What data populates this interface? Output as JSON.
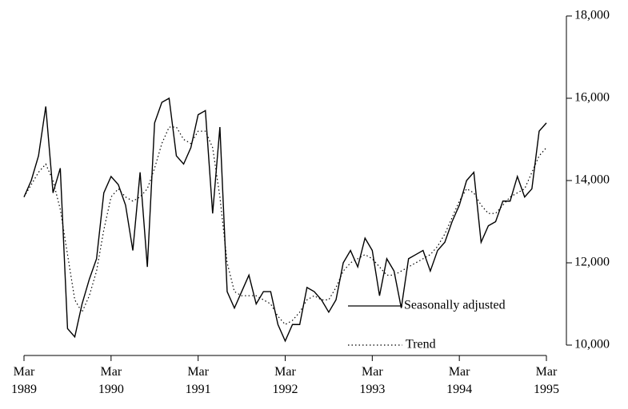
{
  "chart_data": {
    "type": "line",
    "categories": [
      "Mar 1989",
      null,
      null,
      null,
      null,
      null,
      null,
      null,
      null,
      null,
      null,
      null,
      "Mar 1990",
      null,
      null,
      null,
      null,
      null,
      null,
      null,
      null,
      null,
      null,
      null,
      "Mar 1991",
      null,
      null,
      null,
      null,
      null,
      null,
      null,
      null,
      null,
      null,
      null,
      "Mar 1992",
      null,
      null,
      null,
      null,
      null,
      null,
      null,
      null,
      null,
      null,
      null,
      "Mar 1993",
      null,
      null,
      null,
      null,
      null,
      null,
      null,
      null,
      null,
      null,
      null,
      "Mar 1994",
      null,
      null,
      null,
      null,
      null,
      null,
      null,
      null,
      null,
      null,
      null,
      "Mar 1995"
    ],
    "series": [
      {
        "name": "Seasonally adjusted",
        "color": "#000000",
        "dash": "solid",
        "values": [
          13600,
          14000,
          14600,
          15800,
          13700,
          14300,
          10400,
          10200,
          11000,
          11600,
          12100,
          13700,
          14100,
          13900,
          13400,
          12300,
          14200,
          11900,
          15400,
          15900,
          16000,
          14600,
          14400,
          14800,
          15600,
          15700,
          13200,
          15300,
          11300,
          10900,
          11300,
          11700,
          11000,
          11300,
          11300,
          10500,
          10100,
          10500,
          10500,
          11400,
          11300,
          11100,
          10800,
          11100,
          12000,
          12300,
          11900,
          12600,
          12300,
          11200,
          12100,
          11800,
          10900,
          12100,
          12200,
          12300,
          11800,
          12300,
          12500,
          13000,
          13400,
          14000,
          14200,
          12500,
          12900,
          13000,
          13500,
          13500,
          14100,
          13600,
          13800,
          15200,
          15400
        ]
      },
      {
        "name": "Trend",
        "color": "#000000",
        "dash": "dotted",
        "values": [
          13600,
          13900,
          14200,
          14400,
          14000,
          13300,
          12200,
          11100,
          10800,
          11200,
          11800,
          12800,
          13600,
          13800,
          13600,
          13500,
          13600,
          13800,
          14300,
          14900,
          15300,
          15300,
          15000,
          14900,
          15200,
          15200,
          14800,
          13600,
          12000,
          11300,
          11200,
          11200,
          11200,
          11100,
          11000,
          10700,
          10500,
          10600,
          10800,
          11100,
          11200,
          11100,
          11100,
          11400,
          11800,
          12000,
          12100,
          12200,
          12100,
          11900,
          11700,
          11700,
          11800,
          11900,
          12000,
          12100,
          12200,
          12400,
          12700,
          13100,
          13500,
          13800,
          13700,
          13400,
          13200,
          13200,
          13400,
          13600,
          13700,
          13800,
          14200,
          14600,
          14800
        ]
      }
    ],
    "ylim": [
      10000,
      18000
    ],
    "yticks": [
      {
        "value": 10000,
        "label": "10,000"
      },
      {
        "value": 12000,
        "label": "12,000"
      },
      {
        "value": 14000,
        "label": "14,000"
      },
      {
        "value": 16000,
        "label": "16,000"
      },
      {
        "value": 18000,
        "label": "18,000"
      }
    ],
    "y_axis_side": "right",
    "grid": false,
    "legend": "lower right"
  }
}
